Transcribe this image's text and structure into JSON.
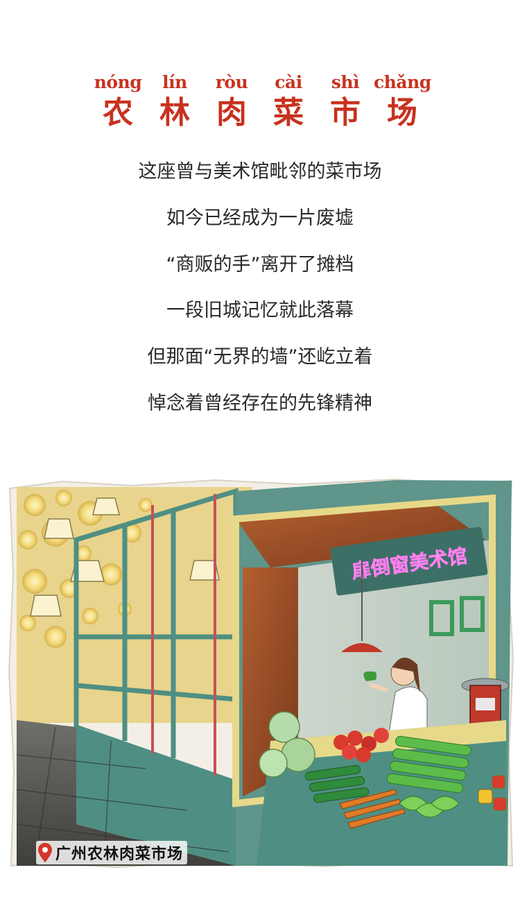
{
  "title": {
    "pinyin": [
      "nóng",
      "lín",
      "ròu",
      "cài",
      "shì",
      "chǎng"
    ],
    "characters": [
      "农",
      "林",
      "肉",
      "菜",
      "市",
      "场"
    ]
  },
  "poem": {
    "lines": [
      "这座曾与美术馆毗邻的菜市场",
      "如今已经成为一片废墟",
      "“商贩的手”离开了摊档",
      "一段旧城记忆就此落幕",
      "但那面“无界的墙”还屹立着",
      "悼念着曾经存在的先锋精神"
    ]
  },
  "illustration": {
    "neon_sign": "扉倒窗美术馆",
    "location_label": "广州农林肉菜市场",
    "location_icon": "map-pin-icon"
  },
  "colors": {
    "title_red": "#c8321f",
    "text_dark": "#2a2a2a",
    "neon_pink": "#f06ad8",
    "frame_green": "#4f8f83",
    "wood_brown": "#a4552c"
  }
}
